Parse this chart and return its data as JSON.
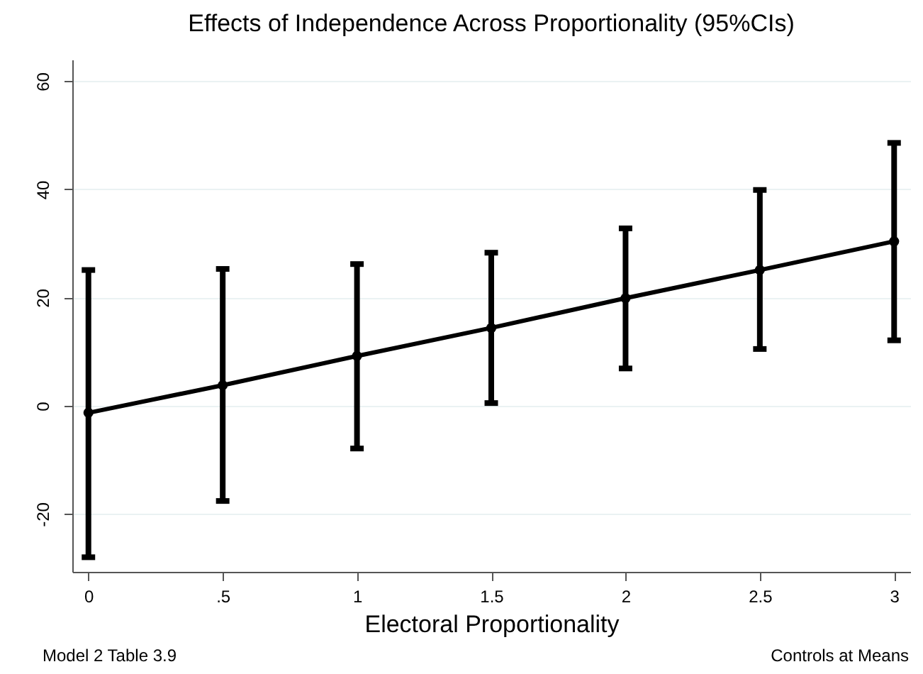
{
  "chart_data": {
    "type": "line",
    "title": "Effects of Independence Across Proportionality (95%CIs)",
    "xlabel": "Electoral Proportionality",
    "x": [
      0,
      0.5,
      1,
      1.5,
      2,
      2.5,
      3
    ],
    "series": [
      {
        "color": "#000000",
        "values": [
          -1.3,
          3.8,
          9.2,
          14.4,
          19.9,
          25.1,
          30.4
        ],
        "errors": [
          [
            -28,
            25.1
          ],
          [
            -17.6,
            25.3
          ],
          [
            -7.9,
            26.2
          ],
          [
            0.5,
            28.3
          ],
          [
            6.9,
            32.8
          ],
          [
            10.5,
            39.9
          ],
          [
            12.1,
            48.6
          ]
        ]
      }
    ],
    "xlim": [
      -0.06,
      3.06
    ],
    "xticks": [
      0,
      {
        "value": 0.5,
        "label": ".5"
      },
      1,
      1.5,
      2,
      2.5,
      3
    ],
    "ylim": [
      -30.7,
      64
    ],
    "yticks": [
      -20,
      0,
      20,
      40,
      60
    ],
    "grid": "y",
    "marker": "circle",
    "line_style": "solid",
    "annotations": [
      "Model 2 Table 3.9",
      "Controls at Means"
    ]
  }
}
